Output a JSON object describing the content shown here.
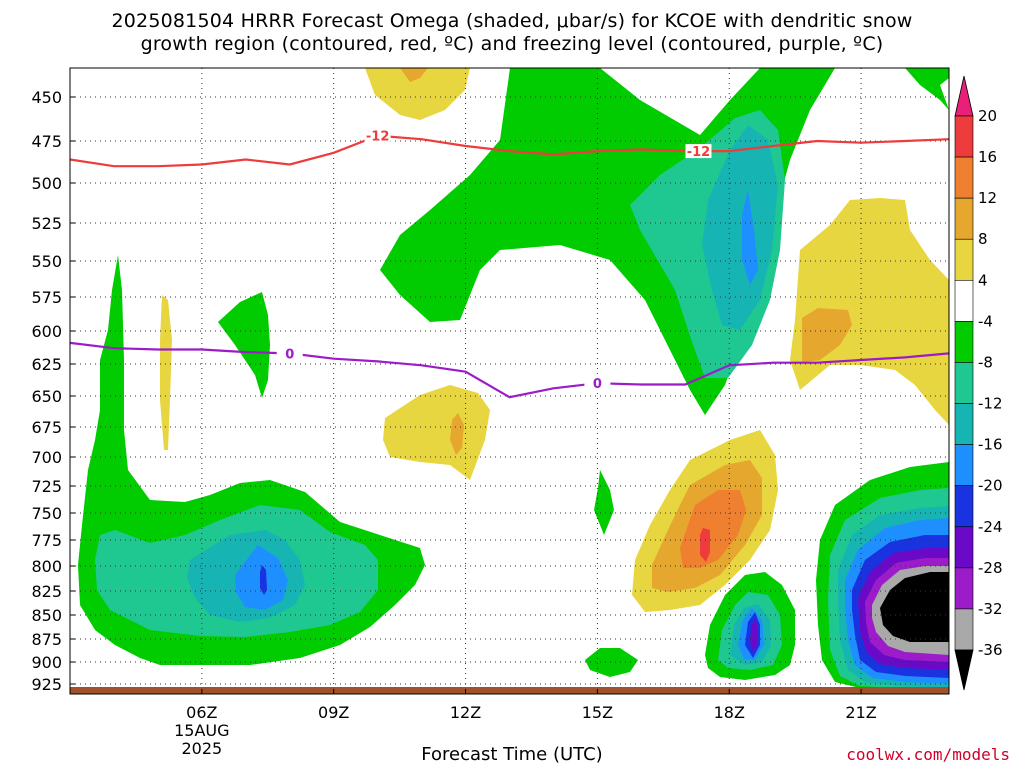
{
  "title": {
    "line1": "2025081504 HRRR Forecast Omega (shaded, μbar/s) for KCOE with dendritic snow",
    "line2": "growth region (contoured, red, ºC) and freezing level (contoured, purple, ºC)"
  },
  "xlabel": "Forecast Time (UTC)",
  "credit": "coolwx.com/models",
  "chart_data": {
    "type": "heatmap",
    "y_axis": {
      "label": "",
      "unit": "hPa",
      "inverted": true,
      "ylim": [
        925,
        430
      ],
      "ticks": [
        "450",
        "475",
        "500",
        "525",
        "550",
        "575",
        "600",
        "625",
        "650",
        "675",
        "700",
        "725",
        "750",
        "775",
        "800",
        "825",
        "850",
        "875",
        "900",
        "925"
      ]
    },
    "x_axis": {
      "label": "Forecast Time (UTC)",
      "xlim_hours": [
        3,
        23
      ],
      "ticks": [
        {
          "hour": 6,
          "label": "06Z",
          "sublabels": [
            "15AUG",
            "2025"
          ]
        },
        {
          "hour": 9,
          "label": "09Z"
        },
        {
          "hour": 12,
          "label": "12Z"
        },
        {
          "hour": 15,
          "label": "15Z"
        },
        {
          "hour": 18,
          "label": "18Z"
        },
        {
          "hour": 21,
          "label": "21Z"
        }
      ]
    },
    "grid": true,
    "colorbar": {
      "labels": [
        "20",
        "16",
        "12",
        "8",
        "4",
        "-4",
        "-8",
        "-12",
        "-16",
        "-20",
        "-24",
        "-28",
        "-32",
        "-36"
      ],
      "bins": [
        {
          "range": "> 20",
          "color": "#e8207a"
        },
        {
          "range": "16 to 20",
          "color": "#ee3b3b"
        },
        {
          "range": "12 to 16",
          "color": "#ee8030"
        },
        {
          "range": "8 to 12",
          "color": "#e6a72f"
        },
        {
          "range": "4 to 8",
          "color": "#e8d640"
        },
        {
          "range": "-4 to 4",
          "color": "#ffffff"
        },
        {
          "range": "-8 to -4",
          "color": "#00cc00"
        },
        {
          "range": "-12 to -8",
          "color": "#1fc890"
        },
        {
          "range": "-16 to -12",
          "color": "#17b4b4"
        },
        {
          "range": "-20 to -16",
          "color": "#1e8fff"
        },
        {
          "range": "-24 to -20",
          "color": "#1a33e0"
        },
        {
          "range": "-28 to -24",
          "color": "#6a0ac8"
        },
        {
          "range": "-32 to -28",
          "color": "#9b1cc8"
        },
        {
          "range": "-36 to -32",
          "color": "#a9a9a9"
        },
        {
          "range": "< -36",
          "color": "#000000"
        }
      ]
    },
    "contours": [
      {
        "name": "-12 ºC isotherm",
        "label": "-12",
        "color": "#ee3b3b",
        "points": [
          [
            3,
            486
          ],
          [
            4,
            490
          ],
          [
            5,
            490
          ],
          [
            6,
            489
          ],
          [
            7,
            486
          ],
          [
            8,
            489
          ],
          [
            9,
            482
          ],
          [
            10,
            472
          ],
          [
            11,
            474
          ],
          [
            12,
            478
          ],
          [
            13,
            481
          ],
          [
            14,
            483
          ],
          [
            15,
            481
          ],
          [
            16,
            480
          ],
          [
            17,
            481
          ],
          [
            18,
            481
          ],
          [
            19,
            478
          ],
          [
            20,
            475
          ],
          [
            21,
            476
          ],
          [
            22,
            475
          ],
          [
            23,
            474
          ]
        ]
      },
      {
        "name": "0 ºC isotherm",
        "label": "0",
        "color": "#9b1cc8",
        "points": [
          [
            3,
            609
          ],
          [
            4,
            613
          ],
          [
            5,
            614
          ],
          [
            6,
            614
          ],
          [
            7,
            616
          ],
          [
            8,
            617
          ],
          [
            9,
            621
          ],
          [
            10,
            623
          ],
          [
            11,
            626
          ],
          [
            12,
            631
          ],
          [
            13,
            651
          ],
          [
            14,
            644
          ],
          [
            15,
            640
          ],
          [
            16,
            641
          ],
          [
            17,
            641
          ],
          [
            18,
            626
          ],
          [
            19,
            624
          ],
          [
            20,
            624
          ],
          [
            21,
            622
          ],
          [
            22,
            620
          ],
          [
            23,
            617
          ]
        ]
      }
    ],
    "surface": {
      "color": "#a0522d",
      "pressure": 930
    }
  }
}
